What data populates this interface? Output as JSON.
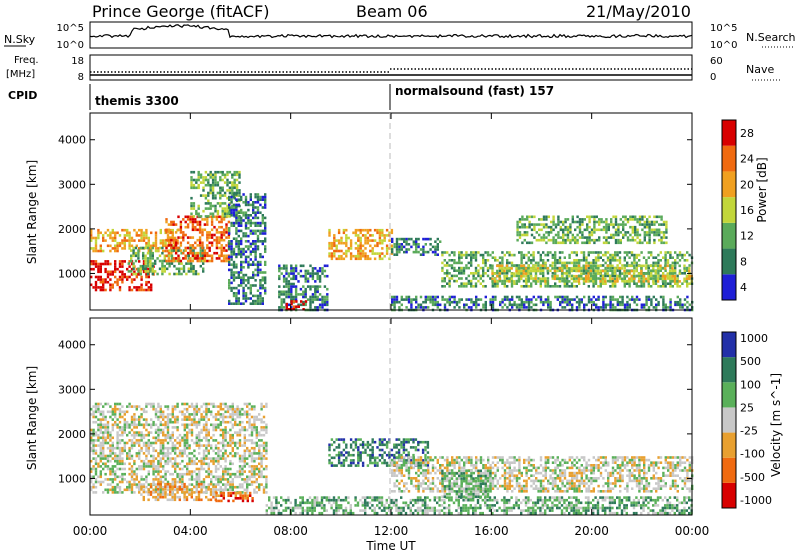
{
  "header": {
    "station": "Prince George (fitACF)",
    "beam": "Beam 06",
    "date": "21/May/2010"
  },
  "strip_panels": {
    "nsky": {
      "left_label": "N.Sky",
      "left_ticks": [
        "10^5",
        "10^0"
      ],
      "right_label": "N.Search",
      "right_ticks": [
        "10^5",
        "10^0"
      ]
    },
    "freq": {
      "left_label_1": "Freq.",
      "left_label_2": "[MHz]",
      "left_ticks": [
        "18",
        "8"
      ],
      "right_label": "Nave",
      "right_ticks": [
        "60",
        "0"
      ]
    },
    "cpid": {
      "label": "CPID",
      "segments": [
        {
          "text": "themis 3300",
          "start_hour": 0
        },
        {
          "text": "normalsound (fast) 157",
          "start_hour": 12
        }
      ]
    }
  },
  "colors": {
    "power": [
      "#1f1fd6",
      "#2e7a5a",
      "#5aaa5a",
      "#c2d63a",
      "#f0a020",
      "#f06a10",
      "#d80000"
    ],
    "velocity": [
      "#2230a8",
      "#2e7a5a",
      "#5ab05a",
      "#c8c8c8",
      "#e8a030",
      "#f06a10",
      "#d80000"
    ]
  },
  "chart_data": [
    {
      "type": "heatmap",
      "name": "power",
      "ylabel": "Slant Range [km]",
      "xlabel": "Time UT",
      "xlim_hours": [
        0,
        24
      ],
      "ylim": [
        180,
        4600
      ],
      "y_ticks": [
        "1000",
        "2000",
        "3000",
        "4000"
      ],
      "x_ticks": [
        "00:00",
        "04:00",
        "08:00",
        "12:00",
        "16:00",
        "20:00",
        "00:00"
      ],
      "colorbar": {
        "label": "Power [dB]",
        "tick_labels": [
          "4",
          "8",
          "12",
          "16",
          "20",
          "24",
          "28"
        ]
      },
      "echo_regions": [
        {
          "t0": 0.0,
          "t1": 2.5,
          "r0": 600,
          "r1": 1300,
          "level": 6
        },
        {
          "t0": 0.0,
          "t1": 3.5,
          "r0": 1500,
          "r1": 2000,
          "level": 4
        },
        {
          "t0": 1.5,
          "t1": 4.5,
          "r0": 1000,
          "r1": 1600,
          "level": 2
        },
        {
          "t0": 3.0,
          "t1": 5.5,
          "r0": 1300,
          "r1": 2300,
          "level": 5
        },
        {
          "t0": 4.0,
          "t1": 6.0,
          "r0": 2300,
          "r1": 3300,
          "level": 2
        },
        {
          "t0": 5.5,
          "t1": 7.0,
          "r0": 300,
          "r1": 2800,
          "level": 1
        },
        {
          "t0": 7.5,
          "t1": 9.5,
          "r0": 200,
          "r1": 1200,
          "level": 1
        },
        {
          "t0": 7.8,
          "t1": 8.6,
          "r0": 200,
          "r1": 400,
          "level": 6
        },
        {
          "t0": 9.5,
          "t1": 12.0,
          "r0": 1300,
          "r1": 2000,
          "level": 4
        },
        {
          "t0": 12.0,
          "t1": 14.0,
          "r0": 1400,
          "r1": 1800,
          "level": 1
        },
        {
          "t0": 14.0,
          "t1": 24.0,
          "r0": 700,
          "r1": 1500,
          "level": 2
        },
        {
          "t0": 16.0,
          "t1": 24.0,
          "r0": 800,
          "r1": 1200,
          "level": 3
        },
        {
          "t0": 12.0,
          "t1": 24.0,
          "r0": 200,
          "r1": 500,
          "level": 1
        },
        {
          "t0": 17.0,
          "t1": 23.0,
          "r0": 1700,
          "r1": 2300,
          "level": 2
        }
      ]
    },
    {
      "type": "heatmap",
      "name": "velocity",
      "ylabel": "Slant Range [km]",
      "xlabel": "Time UT",
      "xlim_hours": [
        0,
        24
      ],
      "ylim": [
        180,
        4600
      ],
      "y_ticks": [
        "1000",
        "2000",
        "3000",
        "4000"
      ],
      "x_ticks": [
        "00:00",
        "04:00",
        "08:00",
        "12:00",
        "16:00",
        "20:00",
        "00:00"
      ],
      "colorbar": {
        "label": "Velocity [m s^-1]",
        "tick_labels": [
          "1000",
          "500",
          "100",
          "25",
          "-25",
          "-100",
          "-500",
          "-1000"
        ]
      },
      "echo_regions": [
        {
          "t0": 0.0,
          "t1": 7.0,
          "r0": 700,
          "r1": 2700,
          "level": 3
        },
        {
          "t0": 2.0,
          "t1": 5.0,
          "r0": 500,
          "r1": 900,
          "level": 4
        },
        {
          "t0": 5.0,
          "t1": 6.5,
          "r0": 500,
          "r1": 700,
          "level": 5
        },
        {
          "t0": 9.5,
          "t1": 13.5,
          "r0": 1300,
          "r1": 1900,
          "level": 1
        },
        {
          "t0": 12.0,
          "t1": 24.0,
          "r0": 700,
          "r1": 1500,
          "level": 3
        },
        {
          "t0": 7.0,
          "t1": 24.0,
          "r0": 200,
          "r1": 600,
          "level": 2
        },
        {
          "t0": 14.0,
          "t1": 16.0,
          "r0": 600,
          "r1": 1200,
          "level": 2
        }
      ]
    }
  ],
  "xlabel_bottom": "Time UT"
}
